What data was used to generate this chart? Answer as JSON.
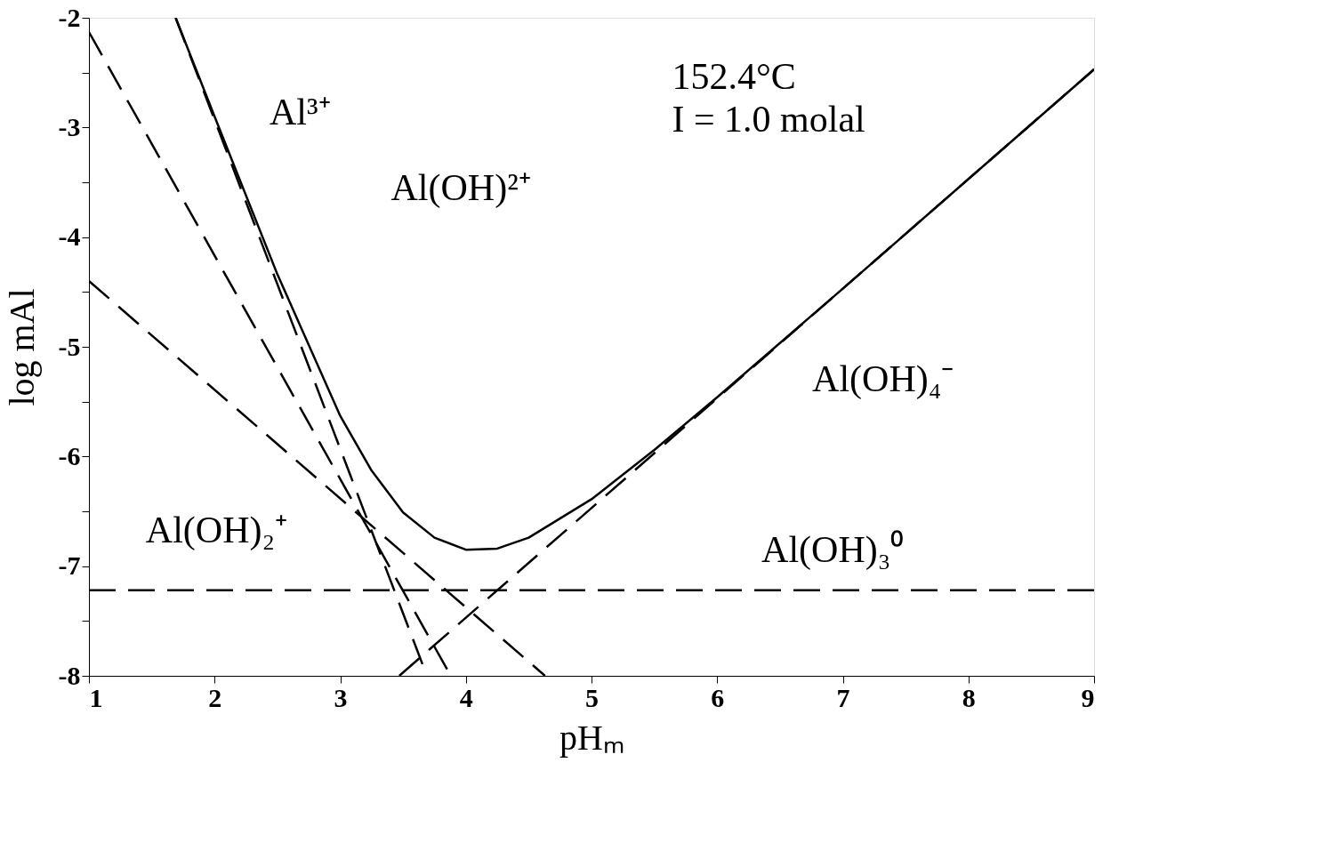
{
  "chart_data": {
    "type": "line",
    "xlabel": "pHₘ",
    "ylabel": "log mAl",
    "xlim": [
      1,
      9
    ],
    "ylim": [
      -8,
      -2
    ],
    "xticks": [
      1,
      2,
      3,
      4,
      5,
      6,
      7,
      8,
      9
    ],
    "yticks": [
      -8,
      {
        "value": -7.5,
        "label": null
      },
      -7,
      {
        "value": -6.5,
        "label": null
      },
      -6,
      {
        "value": -5.5,
        "label": null
      },
      -5,
      {
        "value": -4.5,
        "label": null
      },
      -4,
      {
        "value": -3.5,
        "label": null
      },
      -3,
      {
        "value": -2.5,
        "label": null
      },
      -2
    ],
    "grid": false,
    "legend": false,
    "marker": "none",
    "series": [
      {
        "color": "#000000",
        "line_style": "solid",
        "x": [
          1.69,
          2,
          2.5,
          3,
          3.25,
          3.5,
          3.75,
          4,
          4.25,
          4.5,
          5,
          5.5,
          6,
          7,
          9
        ],
        "values": [
          -2,
          -2.9,
          -4.34,
          -5.63,
          -6.13,
          -6.51,
          -6.74,
          -6.85,
          -6.84,
          -6.74,
          -6.39,
          -5.94,
          -5.46,
          -4.47,
          -2.47
        ]
      },
      {
        "color": "#000000",
        "line_style": "dashed",
        "x": [
          1.69,
          3.69
        ],
        "values": [
          -2,
          -8
        ]
      },
      {
        "color": "#000000",
        "line_style": "dashed",
        "x": [
          1,
          3.88
        ],
        "values": [
          -2.13,
          -8
        ]
      },
      {
        "color": "#000000",
        "line_style": "dashed",
        "x": [
          1,
          4.63
        ],
        "values": [
          -4.4,
          -8
        ]
      },
      {
        "color": "#000000",
        "line_style": "dashed",
        "x": [
          1,
          9
        ],
        "values": [
          -7.22,
          -7.22
        ]
      },
      {
        "color": "#000000",
        "line_style": "dashed",
        "x": [
          3.47,
          9
        ],
        "values": [
          -8,
          -2.47
        ]
      }
    ],
    "annotations": [
      "Al³⁺",
      "Al(OH)²⁺",
      "Al(OH)₂⁺",
      "Al(OH)₃⁰",
      "Al(OH)₄⁻",
      "152.4°C",
      "I = 1.0 molal"
    ]
  }
}
